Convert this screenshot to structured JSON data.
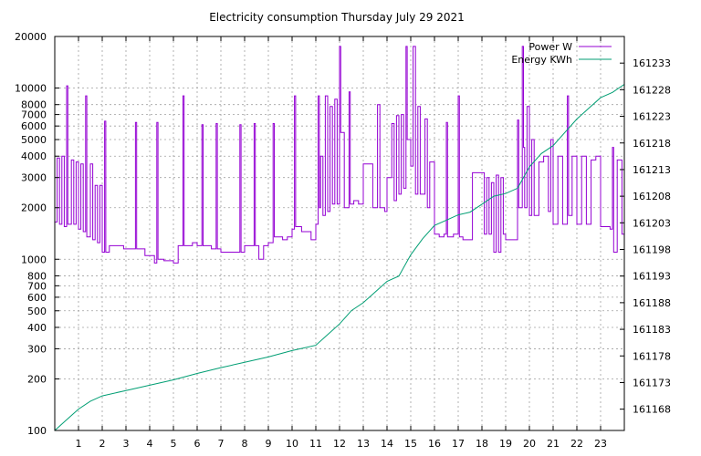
{
  "chart_data": {
    "type": "line",
    "title": "Electricity consumption Thursday July 29 2021",
    "xlabel": "",
    "ylabel": "",
    "x_range": [
      0,
      24
    ],
    "x_ticks": [
      "1",
      "2",
      "3",
      "4",
      "5",
      "6",
      "7",
      "8",
      "9",
      "10",
      "11",
      "12",
      "13",
      "14",
      "15",
      "16",
      "17",
      "18",
      "19",
      "20",
      "21",
      "22",
      "23"
    ],
    "y_left": {
      "scale": "log",
      "range": [
        100,
        20000
      ],
      "ticks": [
        "100",
        "200",
        "300",
        "400",
        "500",
        "600",
        "700",
        "800",
        "1000",
        "2000",
        "3000",
        "4000",
        "5000",
        "6000",
        "7000",
        "8000",
        "10000",
        "20000"
      ]
    },
    "y_right": {
      "range": [
        161164,
        161238
      ],
      "ticks": [
        "161168",
        "161173",
        "161178",
        "161183",
        "161188",
        "161193",
        "161198",
        "161203",
        "161208",
        "161213",
        "161218",
        "161223",
        "161228",
        "161233"
      ]
    },
    "grid": true,
    "legend_position": "top-right",
    "colors": {
      "power": "#9400d3",
      "energy": "#009e73"
    },
    "series": [
      {
        "name": "Power W",
        "axis": "left",
        "points": [
          [
            0,
            1650
          ],
          [
            0.1,
            3900
          ],
          [
            0.2,
            1600
          ],
          [
            0.3,
            4000
          ],
          [
            0.4,
            1550
          ],
          [
            0.5,
            10300
          ],
          [
            0.55,
            1600
          ],
          [
            0.7,
            3800
          ],
          [
            0.8,
            1600
          ],
          [
            0.9,
            3700
          ],
          [
            1.0,
            1500
          ],
          [
            1.1,
            3600
          ],
          [
            1.2,
            1450
          ],
          [
            1.3,
            9000
          ],
          [
            1.35,
            1350
          ],
          [
            1.5,
            3600
          ],
          [
            1.6,
            1300
          ],
          [
            1.7,
            2700
          ],
          [
            1.8,
            1250
          ],
          [
            1.9,
            2700
          ],
          [
            2.0,
            1100
          ],
          [
            2.1,
            6400
          ],
          [
            2.15,
            1100
          ],
          [
            2.3,
            1200
          ],
          [
            2.8,
            1200
          ],
          [
            2.9,
            1150
          ],
          [
            3.3,
            1150
          ],
          [
            3.4,
            6300
          ],
          [
            3.45,
            1150
          ],
          [
            3.6,
            1150
          ],
          [
            3.8,
            1050
          ],
          [
            4.0,
            1050
          ],
          [
            4.2,
            950
          ],
          [
            4.3,
            6300
          ],
          [
            4.35,
            1000
          ],
          [
            4.6,
            980
          ],
          [
            4.8,
            980
          ],
          [
            5.0,
            950
          ],
          [
            5.2,
            1200
          ],
          [
            5.4,
            9000
          ],
          [
            5.45,
            1200
          ],
          [
            5.8,
            1250
          ],
          [
            6.0,
            1200
          ],
          [
            6.2,
            6100
          ],
          [
            6.25,
            1200
          ],
          [
            6.6,
            1150
          ],
          [
            6.8,
            6200
          ],
          [
            6.85,
            1150
          ],
          [
            7.0,
            1100
          ],
          [
            7.6,
            1100
          ],
          [
            7.8,
            6100
          ],
          [
            7.85,
            1100
          ],
          [
            8.0,
            1200
          ],
          [
            8.4,
            6200
          ],
          [
            8.45,
            1200
          ],
          [
            8.6,
            1000
          ],
          [
            8.8,
            1200
          ],
          [
            9.0,
            1250
          ],
          [
            9.2,
            6200
          ],
          [
            9.25,
            1350
          ],
          [
            9.6,
            1300
          ],
          [
            9.8,
            1350
          ],
          [
            10.0,
            1500
          ],
          [
            10.1,
            9000
          ],
          [
            10.15,
            1550
          ],
          [
            10.4,
            1450
          ],
          [
            10.6,
            1450
          ],
          [
            10.8,
            1300
          ],
          [
            11.0,
            1600
          ],
          [
            11.1,
            9000
          ],
          [
            11.15,
            2000
          ],
          [
            11.2,
            4000
          ],
          [
            11.3,
            1800
          ],
          [
            11.4,
            9000
          ],
          [
            11.5,
            1900
          ],
          [
            11.6,
            7800
          ],
          [
            11.7,
            2100
          ],
          [
            11.8,
            8600
          ],
          [
            11.9,
            2100
          ],
          [
            12.0,
            17500
          ],
          [
            12.05,
            5500
          ],
          [
            12.2,
            2000
          ],
          [
            12.4,
            9500
          ],
          [
            12.45,
            2100
          ],
          [
            12.6,
            2200
          ],
          [
            12.8,
            2100
          ],
          [
            13.0,
            3600
          ],
          [
            13.2,
            3600
          ],
          [
            13.4,
            2000
          ],
          [
            13.6,
            8000
          ],
          [
            13.7,
            2000
          ],
          [
            13.9,
            1900
          ],
          [
            14.0,
            3000
          ],
          [
            14.2,
            6200
          ],
          [
            14.3,
            2200
          ],
          [
            14.4,
            6900
          ],
          [
            14.5,
            2400
          ],
          [
            14.6,
            7000
          ],
          [
            14.7,
            2600
          ],
          [
            14.8,
            17500
          ],
          [
            14.85,
            5000
          ],
          [
            15.0,
            3500
          ],
          [
            15.1,
            17500
          ],
          [
            15.2,
            2400
          ],
          [
            15.3,
            7800
          ],
          [
            15.4,
            2400
          ],
          [
            15.6,
            6600
          ],
          [
            15.7,
            2000
          ],
          [
            15.8,
            3700
          ],
          [
            16.0,
            1400
          ],
          [
            16.2,
            1350
          ],
          [
            16.4,
            1400
          ],
          [
            16.5,
            6300
          ],
          [
            16.55,
            1350
          ],
          [
            16.8,
            1400
          ],
          [
            17.0,
            9000
          ],
          [
            17.05,
            1350
          ],
          [
            17.2,
            1300
          ],
          [
            17.4,
            1300
          ],
          [
            17.5,
            1300
          ],
          [
            17.6,
            3200
          ],
          [
            18.0,
            3200
          ],
          [
            18.1,
            1400
          ],
          [
            18.2,
            3000
          ],
          [
            18.3,
            1400
          ],
          [
            18.4,
            2800
          ],
          [
            18.5,
            1100
          ],
          [
            18.6,
            3100
          ],
          [
            18.7,
            1100
          ],
          [
            18.8,
            3000
          ],
          [
            18.9,
            1400
          ],
          [
            19.0,
            1300
          ],
          [
            19.2,
            1300
          ],
          [
            19.5,
            6500
          ],
          [
            19.55,
            2000
          ],
          [
            19.7,
            17500
          ],
          [
            19.75,
            4500
          ],
          [
            19.8,
            2000
          ],
          [
            19.9,
            7800
          ],
          [
            20.0,
            1800
          ],
          [
            20.1,
            5000
          ],
          [
            20.2,
            1800
          ],
          [
            20.4,
            3700
          ],
          [
            20.6,
            4000
          ],
          [
            20.8,
            1900
          ],
          [
            20.9,
            5000
          ],
          [
            21.0,
            1600
          ],
          [
            21.2,
            4000
          ],
          [
            21.4,
            1600
          ],
          [
            21.6,
            9000
          ],
          [
            21.65,
            1800
          ],
          [
            21.8,
            4000
          ],
          [
            22.0,
            1600
          ],
          [
            22.2,
            4000
          ],
          [
            22.4,
            1600
          ],
          [
            22.6,
            3800
          ],
          [
            22.8,
            4000
          ],
          [
            23.0,
            1550
          ],
          [
            23.4,
            1500
          ],
          [
            23.5,
            4500
          ],
          [
            23.55,
            1100
          ],
          [
            23.7,
            3800
          ],
          [
            23.9,
            1400
          ]
        ]
      },
      {
        "name": "Energy KWh",
        "axis": "right",
        "points": [
          [
            0,
            161164
          ],
          [
            0.5,
            161166
          ],
          [
            1.0,
            161168
          ],
          [
            1.5,
            161169.5
          ],
          [
            2.0,
            161170.5
          ],
          [
            3.0,
            161171.5
          ],
          [
            4.0,
            161172.5
          ],
          [
            5.0,
            161173.5
          ],
          [
            6.0,
            161174.7
          ],
          [
            7.0,
            161175.8
          ],
          [
            8.0,
            161176.8
          ],
          [
            9.0,
            161177.8
          ],
          [
            10.0,
            161179
          ],
          [
            11.0,
            161180
          ],
          [
            11.5,
            161182
          ],
          [
            12.0,
            161184
          ],
          [
            12.5,
            161186.5
          ],
          [
            13.0,
            161188
          ],
          [
            13.5,
            161190
          ],
          [
            14.0,
            161192
          ],
          [
            14.5,
            161193
          ],
          [
            15.0,
            161197
          ],
          [
            15.5,
            161200
          ],
          [
            16.0,
            161202.5
          ],
          [
            16.5,
            161203.5
          ],
          [
            17.0,
            161204.5
          ],
          [
            17.5,
            161205
          ],
          [
            18.0,
            161206.5
          ],
          [
            18.5,
            161208
          ],
          [
            19.0,
            161208.5
          ],
          [
            19.5,
            161209.5
          ],
          [
            20.0,
            161213.5
          ],
          [
            20.5,
            161216
          ],
          [
            21.0,
            161217.5
          ],
          [
            21.5,
            161220
          ],
          [
            22.0,
            161222.5
          ],
          [
            22.5,
            161224.5
          ],
          [
            23.0,
            161226.5
          ],
          [
            23.5,
            161227.5
          ],
          [
            24.0,
            161229
          ]
        ]
      }
    ]
  }
}
